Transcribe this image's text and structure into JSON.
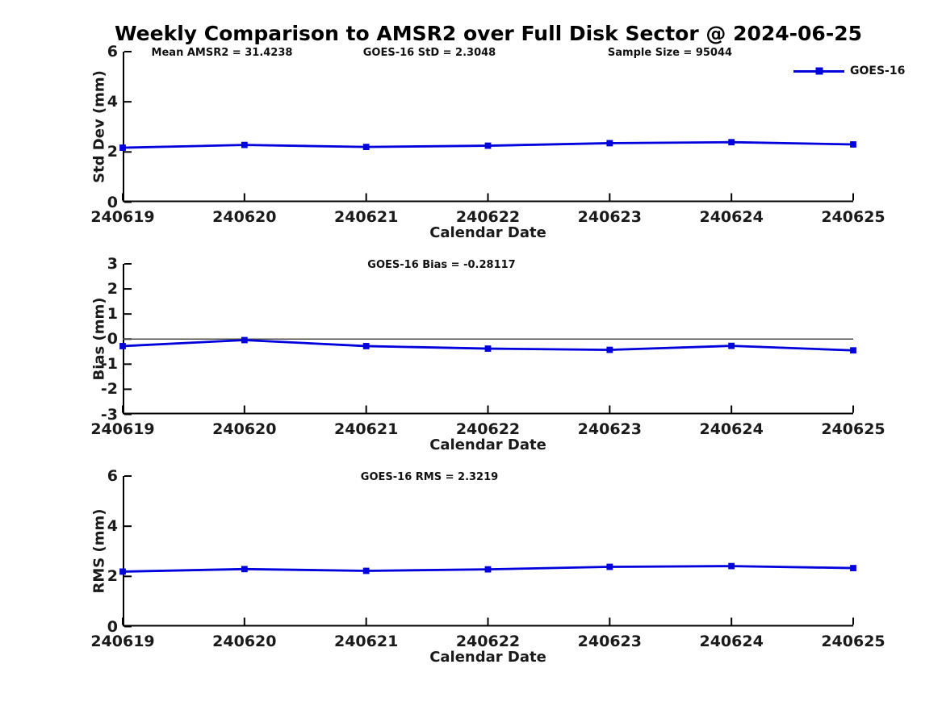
{
  "figure": {
    "title": "Weekly Comparison to AMSR2 over Full Disk Sector @ 2024-06-25",
    "legend": {
      "label": "GOES-16"
    },
    "colors": {
      "line": "#0000dd",
      "marker": "#0000dd",
      "axis": "#000000",
      "zero_line": "#4d4d4d",
      "text": "#1a1a1a",
      "background": "#ffffff"
    }
  },
  "chart_data": [
    {
      "type": "line",
      "ylabel": "Std Dev (mm)",
      "xlabel": "Calendar Date",
      "ylim": [
        0,
        6
      ],
      "yticks": [
        0,
        2,
        4,
        6
      ],
      "grid": false,
      "legend_position": "top-right",
      "categories": [
        "240619",
        "240620",
        "240621",
        "240622",
        "240623",
        "240624",
        "240625"
      ],
      "series": [
        {
          "name": "GOES-16",
          "values": [
            2.17,
            2.28,
            2.2,
            2.25,
            2.35,
            2.39,
            2.3
          ]
        }
      ],
      "annotations": [
        "Mean AMSR2 = 31.4238",
        "GOES-16 StD = 2.3048",
        "Sample Size = 95044"
      ],
      "zero_line": false
    },
    {
      "type": "line",
      "ylabel": "Bias (mm)",
      "xlabel": "Calendar Date",
      "ylim": [
        -3,
        3
      ],
      "yticks": [
        -3,
        -2,
        -1,
        0,
        1,
        2,
        3
      ],
      "grid": false,
      "categories": [
        "240619",
        "240620",
        "240621",
        "240622",
        "240623",
        "240624",
        "240625"
      ],
      "series": [
        {
          "name": "GOES-16",
          "values": [
            -0.28,
            -0.04,
            -0.28,
            -0.38,
            -0.43,
            -0.27,
            -0.45
          ]
        }
      ],
      "annotations": [
        "GOES-16 Bias  = -0.28117"
      ],
      "zero_line": true
    },
    {
      "type": "line",
      "ylabel": "RMS (mm)",
      "xlabel": "Calendar Date",
      "ylim": [
        0,
        6
      ],
      "yticks": [
        0,
        2,
        4,
        6
      ],
      "grid": false,
      "categories": [
        "240619",
        "240620",
        "240621",
        "240622",
        "240623",
        "240624",
        "240625"
      ],
      "series": [
        {
          "name": "GOES-16",
          "values": [
            2.19,
            2.29,
            2.22,
            2.28,
            2.38,
            2.41,
            2.33
          ]
        }
      ],
      "annotations": [
        "GOES-16 RMS = 2.3219"
      ],
      "zero_line": false
    }
  ]
}
